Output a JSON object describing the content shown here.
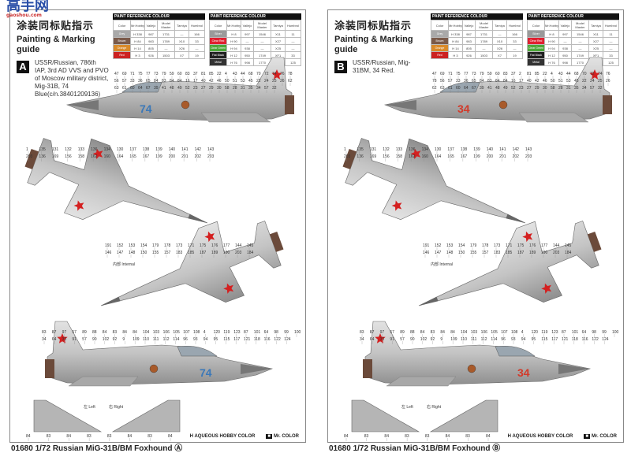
{
  "watermark": {
    "text": "高手网",
    "url_text": "gaoshou.com"
  },
  "paint_table_header": {
    "caption": "PAINT REFERENCE COLOUR",
    "columns": [
      "Color",
      "Mr.Hobby",
      "Vallejo",
      "Model Master",
      "Tamiya",
      "Humbrol"
    ]
  },
  "paint_table_1": [
    {
      "color": "Grey",
      "hex": "#a9a9a9",
      "mr": "H 338",
      "vallejo": "987",
      "mm": "1731",
      "tamiya": "—",
      "humbrol": "166"
    },
    {
      "color": "Brown",
      "hex": "#7a5a4a",
      "mr": "H 84",
      "vallejo": "983",
      "mm": "1789",
      "tamiya": "X10",
      "humbrol": "33"
    },
    {
      "color": "Orange",
      "hex": "#d98a2a",
      "mr": "H 14",
      "vallejo": "805",
      "mm": "—",
      "tamiya": "X26",
      "humbrol": "—"
    },
    {
      "color": "Red",
      "hex": "#cc2222",
      "mr": "H 3",
      "vallejo": "926",
      "mm": "1503",
      "tamiya": "X7",
      "humbrol": "19"
    }
  ],
  "paint_table_2": [
    {
      "color": "Silver",
      "hex": "#9a9a9a",
      "mr": "H 8",
      "vallejo": "997",
      "mm": "1546",
      "tamiya": "X11",
      "humbrol": "11"
    },
    {
      "color": "Clear Red",
      "hex": "#e02030",
      "mr": "H 90",
      "vallejo": "—",
      "mm": "—",
      "tamiya": "X27",
      "humbrol": "—"
    },
    {
      "color": "Clear Green",
      "hex": "#4ca83a",
      "mr": "H 94",
      "vallejo": "938",
      "mm": "—",
      "tamiya": "X25",
      "humbrol": "—"
    },
    {
      "color": "Flat Black",
      "hex": "#222222",
      "mr": "H 12",
      "vallejo": "950",
      "mm": "1749",
      "tamiya": "XF1",
      "humbrol": "33"
    },
    {
      "color": "Metal",
      "hex": "#333333",
      "mr": "H 76",
      "vallejo": "998",
      "mm": "1770",
      "tamiya": "XF56",
      "humbrol": "125"
    }
  ],
  "panels": [
    {
      "title_cn": "涂装同标贴指示",
      "title_en": "Painting & Marking guide",
      "badge": "A",
      "description": "USSR/Russian, 786th IAP, 3rd AD VVS and PVO of Moscow military district, Mig-31B, 74 Blue(c/n.38401209136)",
      "bort_number": "74",
      "bort_color": "#3b78b8",
      "internal_label": "内部 Internal",
      "fin_left": "左 Left",
      "fin_right": "右 Right",
      "callouts_side1": [
        "47",
        "69",
        "71",
        "75",
        "77",
        "73",
        "79",
        "59",
        "60",
        "83",
        "37",
        "81",
        "85",
        "22",
        "4",
        "43",
        "44",
        "68",
        "70",
        "72",
        "74",
        "76",
        "78",
        "56",
        "57",
        "33",
        "36",
        "65",
        "84",
        "83",
        "84",
        "84",
        "16",
        "17",
        "40",
        "42",
        "46",
        "50",
        "51",
        "53",
        "45",
        "22",
        "24",
        "25",
        "26",
        "62",
        "63",
        "61",
        "60",
        "64",
        "67",
        "39",
        "41",
        "48",
        "49",
        "52",
        "23",
        "27",
        "29",
        "30",
        "58",
        "28",
        "31",
        "35",
        "34",
        "57",
        "32"
      ],
      "callouts_top": [
        "1",
        "135",
        "131",
        "132",
        "133",
        "136",
        "134",
        "130",
        "137",
        "138",
        "139",
        "140",
        "141",
        "142",
        "143",
        "203",
        "136",
        "169",
        "156",
        "158",
        "162",
        "160",
        "164",
        "165",
        "167",
        "199",
        "200",
        "201",
        "202",
        "203"
      ],
      "callouts_bottom": [
        "191",
        "152",
        "153",
        "154",
        "179",
        "178",
        "173",
        "171",
        "175",
        "176",
        "177",
        "144",
        "145",
        "146",
        "147",
        "148",
        "150",
        "155",
        "157",
        "183",
        "185",
        "187",
        "189",
        "190",
        "203",
        "184"
      ],
      "callouts_side2": [
        "83",
        "87",
        "97",
        "57",
        "89",
        "88",
        "84",
        "83",
        "84",
        "84",
        "104",
        "103",
        "106",
        "105",
        "107",
        "108",
        "4",
        "120",
        "119",
        "123",
        "87",
        "101",
        "64",
        "98",
        "99",
        "100",
        "34",
        "64",
        "33",
        "91",
        "57",
        "90",
        "102",
        "92",
        "9",
        "109",
        "110",
        "111",
        "112",
        "114",
        "96",
        "93",
        "94",
        "95",
        "115",
        "117",
        "121",
        "118",
        "116",
        "122",
        "124"
      ],
      "callouts_fins": [
        "84",
        "83",
        "84",
        "83",
        "83",
        "84",
        "83",
        "84"
      ]
    },
    {
      "title_cn": "涂装同标贴指示",
      "title_en": "Painting & Marking guide",
      "badge": "B",
      "description": "USSR/Russian, Mig-31BM, 34 Red.",
      "bort_number": "34",
      "bort_color": "#d23a2a",
      "internal_label": "内部 Internal",
      "fin_left": "左 Left",
      "fin_right": "右 Right",
      "callouts_side1": [
        "47",
        "69",
        "71",
        "75",
        "77",
        "73",
        "79",
        "59",
        "60",
        "83",
        "37",
        "2",
        "81",
        "85",
        "22",
        "4",
        "43",
        "44",
        "68",
        "70",
        "72",
        "74",
        "76",
        "78",
        "56",
        "57",
        "33",
        "36",
        "65",
        "84",
        "83",
        "84",
        "84",
        "16",
        "17",
        "40",
        "42",
        "46",
        "50",
        "51",
        "53",
        "45",
        "22",
        "24",
        "25",
        "26",
        "62",
        "63",
        "61",
        "60",
        "64",
        "67",
        "39",
        "41",
        "48",
        "49",
        "52",
        "23",
        "27",
        "29",
        "30",
        "58",
        "28",
        "31",
        "35",
        "34",
        "57",
        "32"
      ],
      "callouts_top": [
        "1",
        "135",
        "131",
        "132",
        "133",
        "136",
        "134",
        "130",
        "137",
        "138",
        "139",
        "140",
        "141",
        "142",
        "143",
        "203",
        "136",
        "169",
        "156",
        "158",
        "162",
        "160",
        "164",
        "165",
        "167",
        "199",
        "200",
        "201",
        "202",
        "203"
      ],
      "callouts_bottom": [
        "191",
        "152",
        "153",
        "154",
        "179",
        "178",
        "173",
        "171",
        "175",
        "176",
        "177",
        "144",
        "145",
        "146",
        "147",
        "148",
        "150",
        "155",
        "157",
        "183",
        "185",
        "187",
        "189",
        "190",
        "203",
        "184"
      ],
      "callouts_side2": [
        "83",
        "87",
        "97",
        "57",
        "89",
        "88",
        "84",
        "83",
        "84",
        "84",
        "104",
        "103",
        "106",
        "105",
        "107",
        "108",
        "4",
        "120",
        "119",
        "123",
        "87",
        "101",
        "64",
        "98",
        "99",
        "100",
        "34",
        "64",
        "33",
        "91",
        "57",
        "90",
        "102",
        "92",
        "9",
        "109",
        "110",
        "111",
        "112",
        "114",
        "96",
        "93",
        "94",
        "95",
        "115",
        "117",
        "121",
        "118",
        "116",
        "122",
        "124"
      ],
      "callouts_fins": [
        "84",
        "83",
        "84",
        "83",
        "83",
        "84",
        "83",
        "84"
      ]
    }
  ],
  "legend": {
    "aqueous": "H    AQUEOUS HOBBY COLOR",
    "mr_icon": "■",
    "mr": "Mr. COLOR"
  },
  "footers": [
    "01680 1/72 Russian MiG-31B/BM Foxhound Ⓐ",
    "01680 1/72 Russian MiG-31B/BM Foxhound Ⓑ"
  ]
}
